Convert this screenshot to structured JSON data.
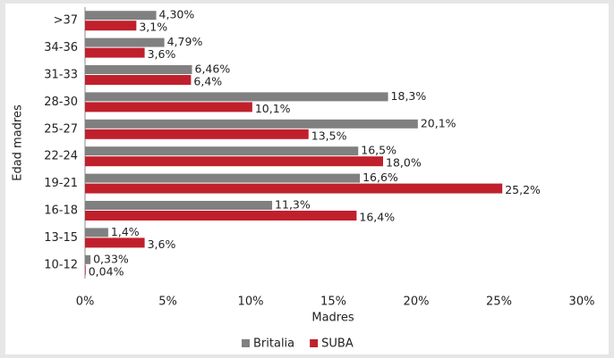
{
  "chart_data": {
    "type": "barh",
    "y_label": "Edad madres",
    "x_label": "Madres",
    "categories": [
      ">37",
      "34-36",
      "31-33",
      "28-30",
      "25-27",
      "22-24",
      "19-21",
      "16-18",
      "13-15",
      "10-12"
    ],
    "series": [
      {
        "name": "Britalia",
        "color": "#808080",
        "values": [
          4.3,
          4.79,
          6.46,
          18.3,
          20.1,
          16.5,
          16.6,
          11.3,
          1.4,
          0.33
        ],
        "value_labels": [
          "4,30%",
          "4,79%",
          "6,46%",
          "18,3%",
          "20,1%",
          "16,5%",
          "16,6%",
          "11,3%",
          "1,4%",
          "0,33%"
        ]
      },
      {
        "name": "SUBA",
        "color": "#c0202c",
        "values": [
          3.1,
          3.6,
          6.4,
          10.1,
          13.5,
          18.0,
          25.2,
          16.4,
          3.6,
          0.04
        ],
        "value_labels": [
          "3,1%",
          "3,6%",
          "6,4%",
          "10,1%",
          "13,5%",
          "18,0%",
          "25,2%",
          "16,4%",
          "3,6%",
          "0,04%"
        ]
      }
    ],
    "xlim": [
      0,
      30
    ],
    "xticks": [
      {
        "value": 0,
        "label": "0%"
      },
      {
        "value": 5,
        "label": "5%"
      },
      {
        "value": 10,
        "label": "10%"
      },
      {
        "value": 15,
        "label": "15%"
      },
      {
        "value": 20,
        "label": "20%"
      },
      {
        "value": 25,
        "label": "25%"
      },
      {
        "value": 30,
        "label": "30%"
      }
    ],
    "legend": "bottom"
  }
}
